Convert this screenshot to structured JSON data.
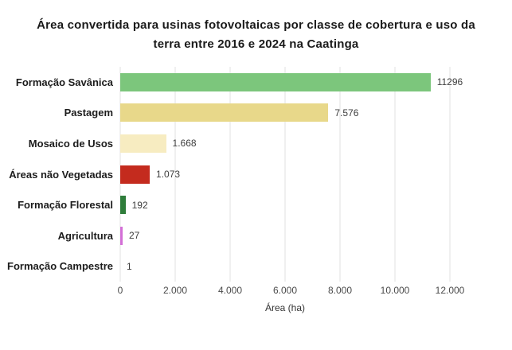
{
  "title": "Área convertida para usinas fotovoltaicas por classe de cobertura e uso da terra entre 2016 e 2024 na Caatinga",
  "chart_data": {
    "type": "bar",
    "orientation": "horizontal",
    "title": "Área convertida para usinas fotovoltaicas por classe de cobertura e uso da terra entre 2016 e 2024 na Caatinga",
    "categories": [
      "Formação Savânica",
      "Pastagem",
      "Mosaico de Usos",
      "Áreas não Vegetadas",
      "Formação Florestal",
      "Agricultura",
      "Formação Campestre"
    ],
    "values": [
      11296,
      7576,
      1668,
      1073,
      192,
      27,
      1
    ],
    "value_labels": [
      "11296",
      "7.576",
      "1.668",
      "1.073",
      "192",
      "27",
      "1"
    ],
    "bar_colors": [
      "#7cc67c",
      "#e8d88a",
      "#f7ecc1",
      "#c42b1e",
      "#2f7d3b",
      "#d36fd6",
      "#cccccc"
    ],
    "xlabel": "Área (ha)",
    "xlim": [
      0,
      12000
    ],
    "x_tick_values": [
      0,
      2000,
      4000,
      6000,
      8000,
      10000,
      12000
    ],
    "x_tick_labels": [
      "0",
      "2.000",
      "4.000",
      "6.000",
      "8.000",
      "10.000",
      "12.000"
    ],
    "grid": "vertical",
    "legend": "none",
    "style": {
      "gridline_color": "#e0e0e0",
      "label_color": "#1c1c1c",
      "value_color": "#3d3d3d",
      "background": "#ffffff"
    }
  }
}
